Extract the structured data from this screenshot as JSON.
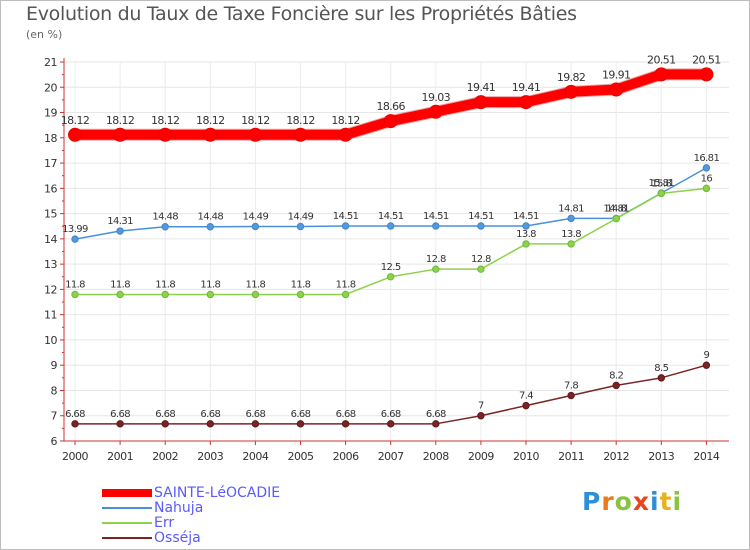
{
  "title": "Evolution du Taux de Taxe Foncière sur les Propriétés Bâties",
  "subtitle": "(en %)",
  "logo": {
    "letters": [
      "P",
      "r",
      "o",
      "x",
      "i",
      "t",
      "i"
    ],
    "colors": [
      "#2e8fd8",
      "#e87b1c",
      "#8ac43f",
      "#e8451c",
      "#2e8fd8",
      "#e8b21c",
      "#8ac43f"
    ]
  },
  "chart_data": {
    "type": "line",
    "title": "Evolution du Taux de Taxe Foncière sur les Propriétés Bâties",
    "ylabel": "(en %)",
    "xlabel": "",
    "x": [
      "2000",
      "2001",
      "2002",
      "2003",
      "2004",
      "2005",
      "2006",
      "2007",
      "2008",
      "2009",
      "2010",
      "2011",
      "2012",
      "2013",
      "2014"
    ],
    "ylim": [
      6,
      21
    ],
    "yticks": [
      "6",
      "7",
      "8",
      "9",
      "10",
      "11",
      "12",
      "13",
      "14",
      "15",
      "16",
      "17",
      "18",
      "19",
      "20",
      "21"
    ],
    "grid": true,
    "legend_position": "bottom-left",
    "series": [
      {
        "name": "SAINTE-LéOCADIE",
        "color": "#ff0000",
        "values": [
          18.12,
          18.12,
          18.12,
          18.12,
          18.12,
          18.12,
          18.12,
          18.66,
          19.03,
          19.41,
          19.41,
          19.82,
          19.91,
          20.51,
          20.51
        ],
        "labels": [
          "18.12",
          "18.12",
          "18.12",
          "18.12",
          "18.12",
          "18.12",
          "18.12",
          "18.66",
          "19.03",
          "19.41",
          "19.41",
          "19.82",
          "19.91",
          "20.51",
          "20.51"
        ]
      },
      {
        "name": "Nahuja",
        "color": "#4a90d9",
        "values": [
          13.99,
          14.31,
          14.48,
          14.48,
          14.49,
          14.49,
          14.51,
          14.51,
          14.51,
          14.51,
          14.51,
          14.81,
          14.81,
          15.81,
          16.81
        ],
        "labels": [
          "13.99",
          "14.31",
          "14.48",
          "14.48",
          "14.49",
          "14.49",
          "14.51",
          "14.51",
          "14.51",
          "14.51",
          "14.51",
          "14.81",
          "14.81",
          "15.81",
          "16.81"
        ]
      },
      {
        "name": "Err",
        "color": "#8cd24a",
        "values": [
          11.8,
          11.8,
          11.8,
          11.8,
          11.8,
          11.8,
          11.8,
          12.5,
          12.8,
          12.8,
          13.8,
          13.8,
          14.8,
          15.8,
          16
        ],
        "labels": [
          "11.8",
          "11.8",
          "11.8",
          "11.8",
          "11.8",
          "11.8",
          "11.8",
          "12.5",
          "12.8",
          "12.8",
          "13.8",
          "13.8",
          "14.8",
          "15.8",
          "16"
        ]
      },
      {
        "name": "Osséja",
        "color": "#7a2525",
        "values": [
          6.68,
          6.68,
          6.68,
          6.68,
          6.68,
          6.68,
          6.68,
          6.68,
          6.68,
          7,
          7.4,
          7.8,
          8.2,
          8.5,
          9
        ],
        "labels": [
          "6.68",
          "6.68",
          "6.68",
          "6.68",
          "6.68",
          "6.68",
          "6.68",
          "6.68",
          "6.68",
          "7",
          "7.4",
          "7.8",
          "8.2",
          "8.5",
          "9"
        ]
      }
    ]
  }
}
